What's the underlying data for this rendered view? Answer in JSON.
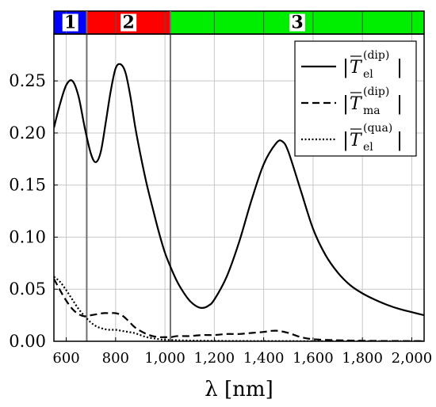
{
  "chart_data": {
    "type": "line",
    "xlabel": "λ [nm]",
    "xlim": [
      550,
      2050
    ],
    "ylim": [
      0,
      0.295
    ],
    "xticks": [
      600,
      800,
      1000,
      1200,
      1400,
      1600,
      1800,
      2000
    ],
    "xtick_labels": [
      "600",
      "800",
      "1,000",
      "1,200",
      "1,400",
      "1,600",
      "1,800",
      "2,000"
    ],
    "yticks": [
      0,
      0.05,
      0.1,
      0.15,
      0.2,
      0.25
    ],
    "ytick_labels": [
      "0.00",
      "0.05",
      "0.10",
      "0.15",
      "0.20",
      "0.25"
    ],
    "grid": true,
    "legend_position": "top-right",
    "vlines": [
      683,
      1022
    ],
    "regions": [
      {
        "label": "1",
        "x": [
          550,
          683
        ],
        "color": "#0000ff"
      },
      {
        "label": "2",
        "x": [
          683,
          1022
        ],
        "color": "#ff0000"
      },
      {
        "label": "3",
        "x": [
          1022,
          2050
        ],
        "color": "#00ee00"
      }
    ],
    "region_grid_lines": [
      600,
      800,
      1000,
      1200,
      1400,
      1600,
      1800,
      2000
    ],
    "series": [
      {
        "name": "el-dip",
        "legend": {
          "base": "T",
          "sub": "el",
          "sup": "(dip)"
        },
        "style": "solid",
        "x": [
          550,
          575,
          600,
          625,
          650,
          675,
          700,
          720,
          740,
          760,
          780,
          800,
          820,
          840,
          860,
          880,
          900,
          925,
          950,
          975,
          1000,
          1025,
          1050,
          1075,
          1100,
          1125,
          1150,
          1175,
          1200,
          1250,
          1300,
          1350,
          1400,
          1450,
          1475,
          1500,
          1550,
          1600,
          1650,
          1700,
          1750,
          1800,
          1850,
          1900,
          1950,
          2000,
          2050
        ],
        "values": [
          0.205,
          0.228,
          0.246,
          0.25,
          0.235,
          0.205,
          0.18,
          0.172,
          0.182,
          0.21,
          0.24,
          0.262,
          0.266,
          0.258,
          0.235,
          0.205,
          0.18,
          0.152,
          0.128,
          0.105,
          0.085,
          0.07,
          0.057,
          0.047,
          0.039,
          0.034,
          0.032,
          0.034,
          0.04,
          0.062,
          0.095,
          0.135,
          0.17,
          0.19,
          0.192,
          0.182,
          0.145,
          0.108,
          0.083,
          0.066,
          0.054,
          0.046,
          0.04,
          0.035,
          0.031,
          0.028,
          0.025
        ]
      },
      {
        "name": "ma-dip",
        "legend": {
          "base": "T",
          "sub": "ma",
          "sup": "(dip)"
        },
        "style": "dashed",
        "x": [
          550,
          575,
          600,
          625,
          650,
          675,
          700,
          725,
          750,
          775,
          800,
          825,
          850,
          875,
          900,
          925,
          950,
          975,
          1000,
          1025,
          1050,
          1100,
          1150,
          1200,
          1250,
          1300,
          1350,
          1400,
          1430,
          1460,
          1500,
          1550,
          1600,
          1700,
          1800,
          1900,
          2050
        ],
        "values": [
          0.06,
          0.049,
          0.039,
          0.031,
          0.026,
          0.024,
          0.025,
          0.026,
          0.027,
          0.027,
          0.027,
          0.025,
          0.02,
          0.014,
          0.01,
          0.007,
          0.005,
          0.004,
          0.004,
          0.004,
          0.005,
          0.005,
          0.006,
          0.006,
          0.007,
          0.007,
          0.008,
          0.009,
          0.01,
          0.01,
          0.008,
          0.004,
          0.002,
          0.001,
          0.0005,
          0.0003,
          0.0002
        ]
      },
      {
        "name": "el-qua",
        "legend": {
          "base": "T",
          "sub": "el",
          "sup": "(qua)"
        },
        "style": "dotted",
        "x": [
          550,
          575,
          600,
          625,
          650,
          675,
          700,
          725,
          750,
          775,
          800,
          825,
          850,
          875,
          900,
          925,
          950,
          975,
          1000,
          1050,
          1100,
          1200,
          1300,
          1400,
          1500,
          1600,
          1800,
          2050
        ],
        "values": [
          0.062,
          0.057,
          0.049,
          0.04,
          0.031,
          0.024,
          0.018,
          0.014,
          0.012,
          0.011,
          0.011,
          0.01,
          0.009,
          0.008,
          0.006,
          0.004,
          0.003,
          0.002,
          0.0015,
          0.001,
          0.0007,
          0.0004,
          0.0003,
          0.0002,
          0.0002,
          0.0001,
          0.0001,
          0.0001
        ]
      }
    ]
  }
}
